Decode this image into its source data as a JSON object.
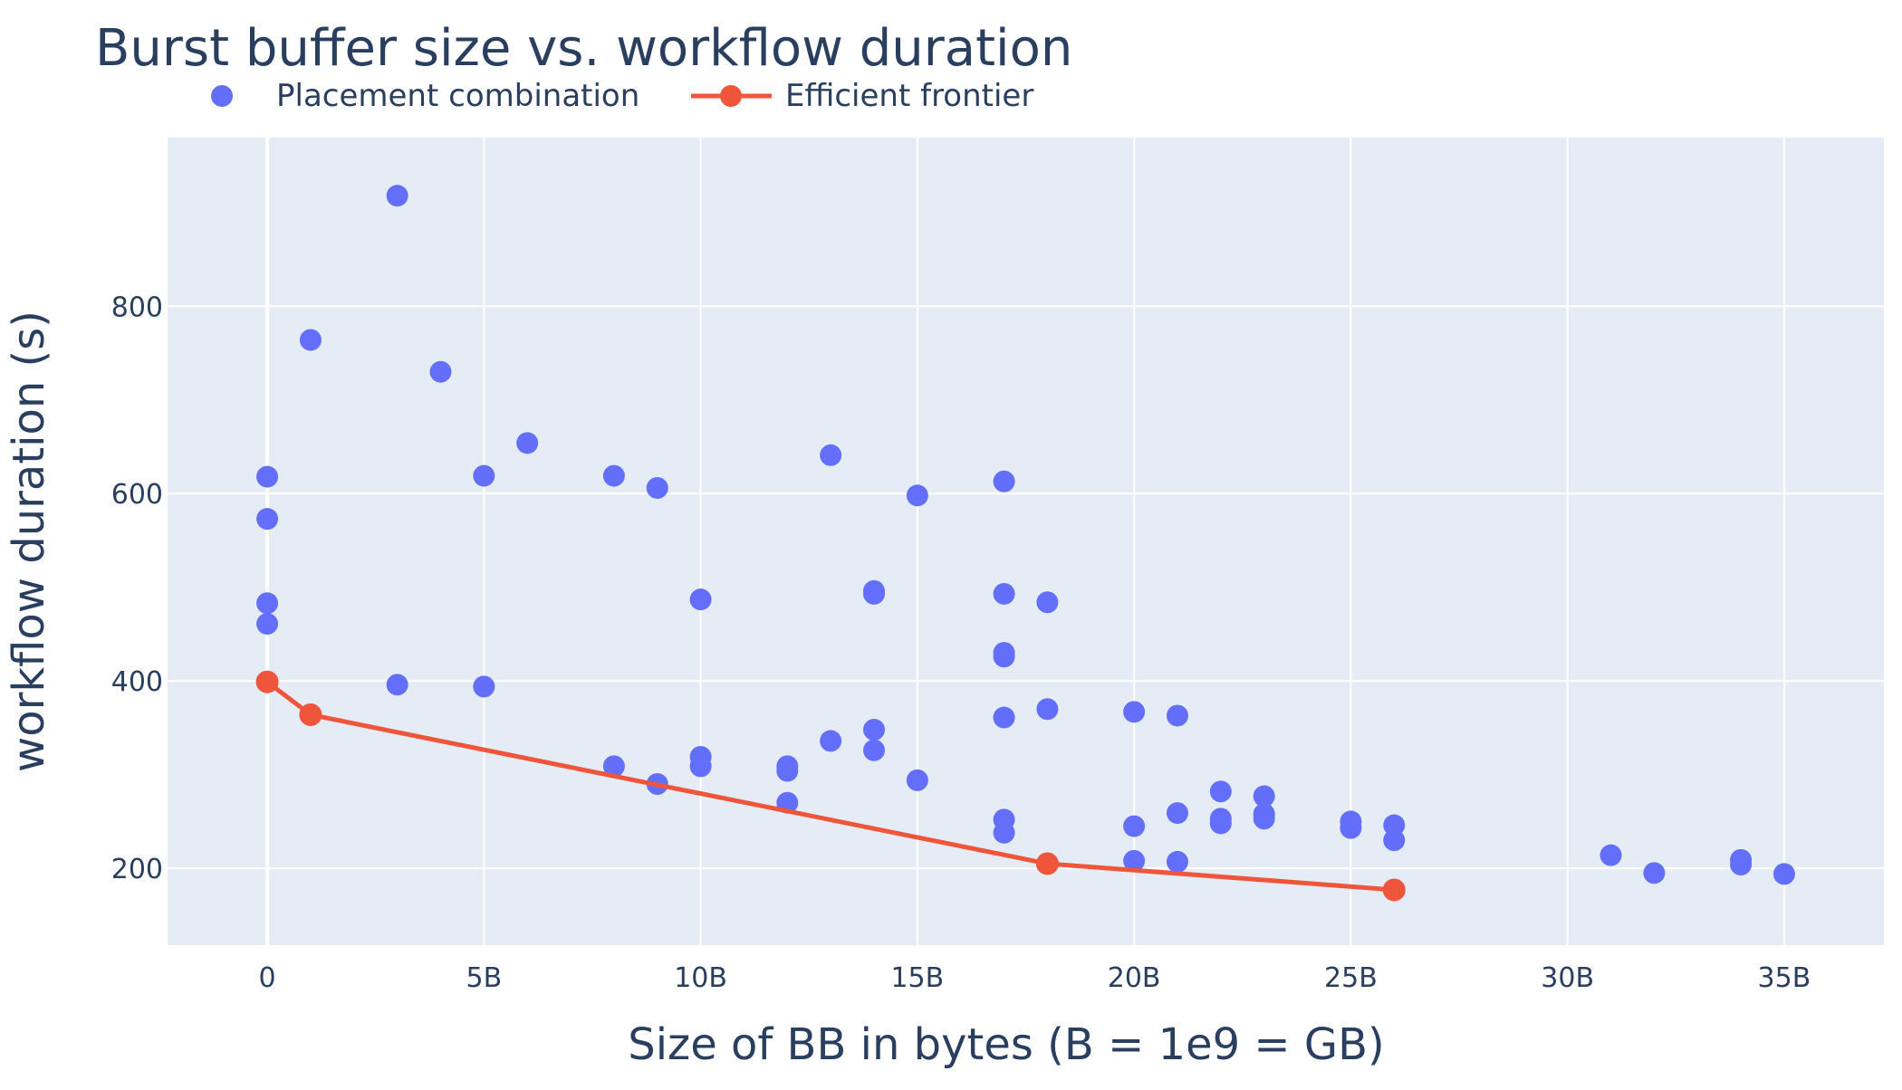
{
  "chart_data": {
    "type": "scatter",
    "title": "Burst buffer size vs. workflow duration",
    "xlabel": "Size of BB in bytes (B = 1e9 = GB)",
    "ylabel": "workflow duration (s)",
    "xlim": [
      -2.3,
      37.3
    ],
    "ylim": [
      118,
      980
    ],
    "x_ticks": [
      {
        "value": 0,
        "label": "0"
      },
      {
        "value": 5,
        "label": "5B"
      },
      {
        "value": 10,
        "label": "10B"
      },
      {
        "value": 15,
        "label": "15B"
      },
      {
        "value": 20,
        "label": "20B"
      },
      {
        "value": 25,
        "label": "25B"
      },
      {
        "value": 30,
        "label": "30B"
      },
      {
        "value": 35,
        "label": "35B"
      }
    ],
    "y_ticks": [
      {
        "value": 200,
        "label": "200"
      },
      {
        "value": 400,
        "label": "400"
      },
      {
        "value": 600,
        "label": "600"
      },
      {
        "value": 800,
        "label": "800"
      }
    ],
    "grid": true,
    "legend_position": "top-left, horizontal",
    "colors": {
      "plot_background": "#e5ecf6",
      "grid": "#ffffff",
      "text": "#2a3f5f",
      "placement": "#636efa",
      "frontier": "#ef553b"
    },
    "series": [
      {
        "name": "Placement combination",
        "mode": "markers",
        "points": [
          [
            0,
            618
          ],
          [
            0,
            573
          ],
          [
            0,
            483
          ],
          [
            0,
            461
          ],
          [
            0,
            399
          ],
          [
            1,
            764
          ],
          [
            1,
            364
          ],
          [
            3,
            918
          ],
          [
            3,
            396
          ],
          [
            4,
            730
          ],
          [
            5,
            619
          ],
          [
            5,
            394
          ],
          [
            6,
            654
          ],
          [
            8,
            619
          ],
          [
            8,
            309
          ],
          [
            9,
            606
          ],
          [
            9,
            290
          ],
          [
            10,
            487
          ],
          [
            10,
            319
          ],
          [
            10,
            309
          ],
          [
            12,
            309
          ],
          [
            12,
            304
          ],
          [
            12,
            270
          ],
          [
            13,
            641
          ],
          [
            13,
            336
          ],
          [
            14,
            496
          ],
          [
            14,
            493
          ],
          [
            14,
            348
          ],
          [
            14,
            326
          ],
          [
            15,
            598
          ],
          [
            15,
            294
          ],
          [
            17,
            613
          ],
          [
            17,
            493
          ],
          [
            17,
            430
          ],
          [
            17,
            426
          ],
          [
            17,
            361
          ],
          [
            17,
            252
          ],
          [
            17,
            238
          ],
          [
            18,
            484
          ],
          [
            18,
            370
          ],
          [
            18,
            205
          ],
          [
            20,
            367
          ],
          [
            20,
            245
          ],
          [
            20,
            208
          ],
          [
            21,
            363
          ],
          [
            21,
            259
          ],
          [
            21,
            207
          ],
          [
            22,
            282
          ],
          [
            22,
            253
          ],
          [
            22,
            248
          ],
          [
            23,
            277
          ],
          [
            23,
            258
          ],
          [
            23,
            253
          ],
          [
            25,
            250
          ],
          [
            25,
            243
          ],
          [
            26,
            246
          ],
          [
            26,
            230
          ],
          [
            26,
            177
          ],
          [
            31,
            214
          ],
          [
            32,
            195
          ],
          [
            34,
            209
          ],
          [
            34,
            204
          ],
          [
            35,
            194
          ]
        ]
      },
      {
        "name": "Efficient frontier",
        "mode": "lines+markers",
        "points": [
          [
            0,
            399
          ],
          [
            1,
            364
          ],
          [
            18,
            205
          ],
          [
            26,
            177
          ]
        ]
      }
    ]
  }
}
